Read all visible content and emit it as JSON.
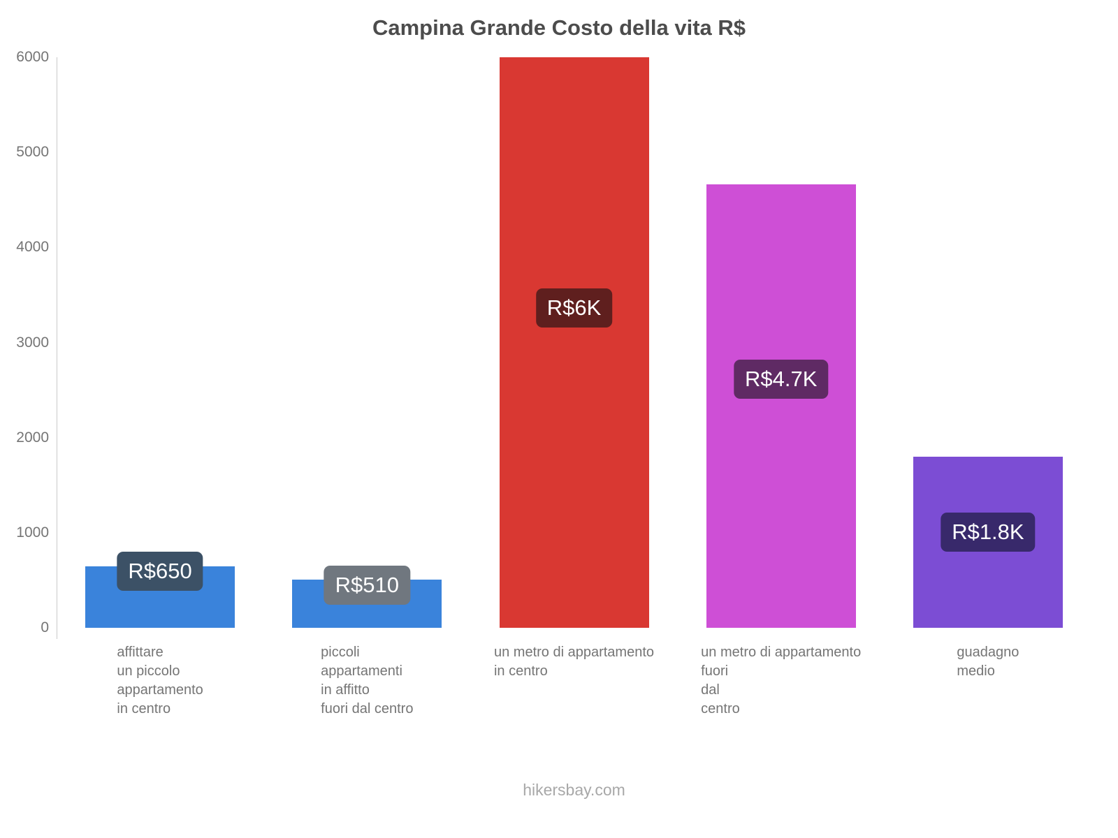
{
  "title": "Campina Grande Costo della vita R$",
  "footer": "hikersbay.com",
  "chart_data": {
    "type": "bar",
    "title": "Campina Grande Costo della vita R$",
    "categories": [
      "affittare un piccolo appartamento in centro",
      "piccoli appartamenti in affitto fuori dal centro",
      "un metro di appartamento in centro",
      "un metro di appartamento fuori dal centro",
      "guadagno medio"
    ],
    "category_lines": [
      [
        "affittare",
        "un piccolo",
        "appartamento",
        "in centro"
      ],
      [
        "piccoli",
        "appartamenti",
        "in affitto",
        "fuori dal centro"
      ],
      [
        "un metro di appartamento",
        "in centro"
      ],
      [
        "un metro di appartamento",
        "fuori",
        "dal",
        "centro"
      ],
      [
        "guadagno",
        "medio"
      ]
    ],
    "values": [
      650,
      510,
      6000,
      4667,
      1800
    ],
    "value_labels": [
      "R$650",
      "R$510",
      "R$6K",
      "R$4.7K",
      "R$1.8K"
    ],
    "bar_colors": [
      "#3a83db",
      "#3a83db",
      "#d93832",
      "#ce4fd6",
      "#7c4dd4"
    ],
    "value_label_bg": [
      "#3c5166",
      "#70777f",
      "#5f1f1e",
      "#5f2a64",
      "#38296b"
    ],
    "currency": "R$",
    "xlabel": "",
    "ylabel": "",
    "ylim": [
      0,
      6000
    ],
    "yticks": [
      0,
      1000,
      2000,
      3000,
      4000,
      5000,
      6000
    ],
    "grid": false,
    "legend": "none"
  }
}
